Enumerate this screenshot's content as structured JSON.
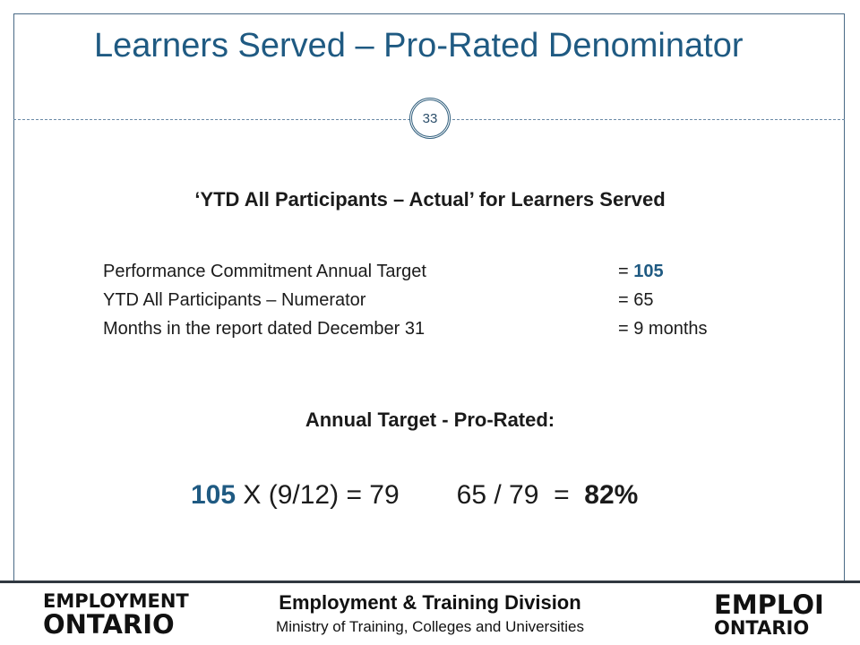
{
  "slide": {
    "title": "Learners Served – Pro-Rated Denominator",
    "number": "33",
    "subtitle": "‘YTD All Participants – Actual’ for Learners Served",
    "rows": [
      {
        "label": "Performance  Commitment Annual Target",
        "eq": "= ",
        "value": "105",
        "suffix": ""
      },
      {
        "label": "YTD All Participants – Numerator",
        "eq": "= ",
        "value": "65",
        "suffix": ""
      },
      {
        "label": "Months in the report dated December  31",
        "eq": "= ",
        "value": "9",
        "suffix": " months"
      }
    ],
    "prorated_heading": "Annual Target -  Pro-Rated:",
    "formula": {
      "target": "105",
      "calc": " X (9/12) = 79",
      "ratio": "65 / 79  =  ",
      "result": "82%"
    }
  },
  "footer": {
    "left_logo": {
      "line1": "EMPLOYMENT",
      "line2": "ONTARIO"
    },
    "division": "Employment & Training Division",
    "ministry": "Ministry of Training, Colleges and Universities",
    "right_logo": {
      "line1": "EMPLOI",
      "line2": "ONTARIO"
    }
  },
  "colors": {
    "accent": "#1f5a82",
    "text": "#1b1b1b",
    "border": "#4a6a86"
  }
}
